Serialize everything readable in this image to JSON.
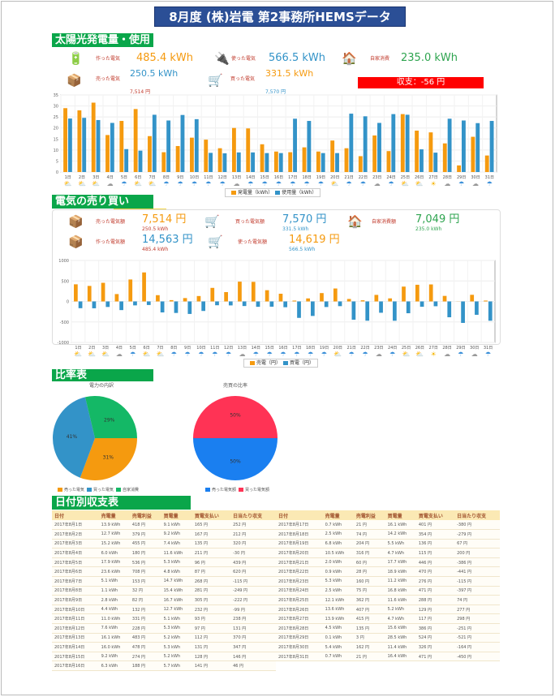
{
  "title": "8月度 (株)岩電 第2事務所HEMSデータ",
  "colors": {
    "orange": "#f59a0f",
    "blue": "#3393c8",
    "green": "#2ea44f",
    "red": "#ff0000",
    "section": "#0aa64a"
  },
  "solar": {
    "header": "太陽光発電量・使用量",
    "made": {
      "label": "作った電気",
      "value": "485.4 kWh",
      "icon": "battery-charge-icon"
    },
    "used": {
      "label": "使った電気",
      "value": "566.5 kWh",
      "icon": "battery-plug-icon"
    },
    "self": {
      "label": "自家消費",
      "value": "235.0 kWh",
      "icon": "house-bolt-icon"
    },
    "sold": {
      "label": "売った電気",
      "value": "250.5 kWh",
      "sub": "7,514 円",
      "icon": "yen-box-icon"
    },
    "bought": {
      "label": "買った電気",
      "value": "331.5 kWh",
      "sub": "7,570 円",
      "icon": "cart-bolt-icon"
    },
    "balance": "収支：-56 円"
  },
  "trade": {
    "header": "電気の売り買い",
    "sold": {
      "label": "売った電気額",
      "value": "7,514 円",
      "sub": "250.5 kWh"
    },
    "bought": {
      "label": "買った電気額",
      "value": "7,570 円",
      "sub": "331.5 kWh"
    },
    "self": {
      "label": "自家消費額",
      "value": "7,049 円",
      "sub": "235.0 kWh"
    },
    "made": {
      "label": "作った電気額",
      "value": "14,563 円",
      "sub": "485.4 kWh"
    },
    "used": {
      "label": "使った電気額",
      "value": "14,619 円",
      "sub": "566.5 kWh"
    }
  },
  "weather": [
    "cloud-sun",
    "sun-cloud",
    "cloud-sun",
    "cloud",
    "rain-sun",
    "sun-cloud",
    "cloud-sun",
    "rain",
    "rain",
    "rain",
    "rain",
    "rain",
    "cloud",
    "rain-sun",
    "rain",
    "rain",
    "rain",
    "rain",
    "rain",
    "cloud-sun",
    "rain",
    "rain",
    "cloud",
    "sun-rain",
    "cloud-sun",
    "cloud-sun",
    "sun",
    "cloud",
    "rain",
    "cloud",
    "rain"
  ],
  "chart_data": [
    {
      "type": "bar",
      "title": "",
      "xlabel": "",
      "ylabel": "",
      "categories": [
        "1日",
        "2日",
        "3日",
        "4日",
        "5日",
        "6日",
        "7日",
        "8日",
        "9日",
        "10日",
        "11日",
        "12日",
        "13日",
        "14日",
        "15日",
        "16日",
        "17日",
        "18日",
        "19日",
        "20日",
        "21日",
        "22日",
        "23日",
        "24日",
        "25日",
        "26日",
        "27日",
        "28日",
        "29日",
        "30日",
        "31日"
      ],
      "ylim": [
        0,
        35
      ],
      "yticks": [
        "0",
        "5",
        "10",
        "15",
        "20",
        "25",
        "30",
        "35"
      ],
      "legend": "bottom",
      "series": [
        {
          "name": "発電量（kWh）",
          "color": "#f59a0f",
          "values": [
            29,
            28,
            31.5,
            16.8,
            23.2,
            28.6,
            16.3,
            9,
            11.8,
            15.6,
            14.7,
            10.8,
            20,
            19.8,
            12.6,
            9.3,
            9,
            11.2,
            9.3,
            14.3,
            10.8,
            7.2,
            16.6,
            9.5,
            26.3,
            18.8,
            18,
            13,
            3,
            16,
            7.5
          ]
        },
        {
          "name": "使用量（kWh）",
          "color": "#3393c8",
          "values": [
            24.3,
            24.6,
            23.6,
            22.3,
            10.4,
            9.7,
            26,
            23.4,
            25.9,
            24,
            8.7,
            8.5,
            8.9,
            8.9,
            8.6,
            8.6,
            24.2,
            23.2,
            8.6,
            8.6,
            26.5,
            25.3,
            22.3,
            26.3,
            26,
            10.3,
            8.8,
            24.2,
            23.4,
            22.2,
            23.2
          ]
        }
      ]
    },
    {
      "type": "bar",
      "title": "",
      "xlabel": "",
      "ylabel": "",
      "categories": [
        "1日",
        "2日",
        "3日",
        "4日",
        "5日",
        "6日",
        "7日",
        "8日",
        "9日",
        "10日",
        "11日",
        "12日",
        "13日",
        "14日",
        "15日",
        "16日",
        "17日",
        "18日",
        "19日",
        "20日",
        "21日",
        "22日",
        "23日",
        "24日",
        "25日",
        "26日",
        "27日",
        "28日",
        "29日",
        "30日",
        "31日"
      ],
      "ylim": [
        -1000,
        1000
      ],
      "yticks": [
        "-1000",
        "-500",
        "0",
        "500",
        "1000"
      ],
      "legend": "bottom",
      "series": [
        {
          "name": "売電（円）",
          "color": "#f59a0f",
          "values": [
            418,
            379,
            455,
            180,
            536,
            708,
            153,
            32,
            82,
            132,
            331,
            228,
            483,
            478,
            274,
            188,
            21,
            74,
            204,
            316,
            60,
            28,
            160,
            75,
            362,
            407,
            415,
            135,
            3,
            162,
            21
          ]
        },
        {
          "name": "買電（円）",
          "color": "#3393c8",
          "values": [
            -165,
            -167,
            -135,
            -211,
            -96,
            -87,
            -268,
            -281,
            -305,
            -232,
            -93,
            -97,
            -112,
            -131,
            -128,
            -141,
            -401,
            -354,
            -136,
            -115,
            -446,
            -470,
            -276,
            -471,
            -288,
            -129,
            -117,
            -386,
            -524,
            -326,
            -471
          ]
        }
      ]
    },
    {
      "type": "pie",
      "title": "電力の内訳",
      "slices": [
        {
          "name": "売った電気",
          "value": 31,
          "label": "31%",
          "color": "#f59a0f"
        },
        {
          "name": "買った電気",
          "value": 41,
          "label": "41%",
          "color": "#3393c8"
        },
        {
          "name": "自家消費",
          "value": 29,
          "label": "29%",
          "color": "#14b866"
        }
      ]
    },
    {
      "type": "pie",
      "title": "売買の比率",
      "slices": [
        {
          "name": "売った電気額",
          "value": 50,
          "label": "50%",
          "color": "#1a7ff0"
        },
        {
          "name": "買った電気額",
          "value": 50,
          "label": "50%",
          "color": "#ff3355"
        }
      ]
    }
  ],
  "ratio": {
    "header": "比率表"
  },
  "table": {
    "header": "日付別収支表",
    "columns": [
      "日付",
      "売電量",
      "売電利益",
      "買電量",
      "買電支払い",
      "日当たり収支"
    ],
    "left": [
      [
        "2017年8月1日",
        "13.9 kWh",
        "418 円",
        "9.1 kWh",
        "165 円",
        "252 円"
      ],
      [
        "2017年8月2日",
        "12.7 kWh",
        "379 円",
        "9.2 kWh",
        "167 円",
        "212 円"
      ],
      [
        "2017年8月3日",
        "15.2 kWh",
        "455 円",
        "7.4 kWh",
        "135 円",
        "320 円"
      ],
      [
        "2017年8月4日",
        "6.0 kWh",
        "180 円",
        "11.6 kWh",
        "211 円",
        "-30 円"
      ],
      [
        "2017年8月5日",
        "17.9 kWh",
        "536 円",
        "5.3 kWh",
        "96 円",
        "439 円"
      ],
      [
        "2017年8月6日",
        "23.6 kWh",
        "708 円",
        "4.8 kWh",
        "87 円",
        "620 円"
      ],
      [
        "2017年8月7日",
        "5.1 kWh",
        "153 円",
        "14.7 kWh",
        "268 円",
        "-115 円"
      ],
      [
        "2017年8月8日",
        "1.1 kWh",
        "32 円",
        "15.4 kWh",
        "281 円",
        "-249 円"
      ],
      [
        "2017年8月9日",
        "2.8 kWh",
        "82 円",
        "16.7 kWh",
        "305 円",
        "-222 円"
      ],
      [
        "2017年8月10日",
        "4.4 kWh",
        "132 円",
        "12.7 kWh",
        "232 円",
        "-99 円"
      ],
      [
        "2017年8月11日",
        "11.0 kWh",
        "331 円",
        "5.1 kWh",
        "93 円",
        "238 円"
      ],
      [
        "2017年8月12日",
        "7.6 kWh",
        "228 円",
        "5.3 kWh",
        "97 円",
        "131 円"
      ],
      [
        "2017年8月13日",
        "16.1 kWh",
        "483 円",
        "5.2 kWh",
        "112 円",
        "370 円"
      ],
      [
        "2017年8月14日",
        "16.0 kWh",
        "478 円",
        "5.3 kWh",
        "131 円",
        "347 円"
      ],
      [
        "2017年8月15日",
        "9.2 kWh",
        "274 円",
        "5.2 kWh",
        "128 円",
        "146 円"
      ],
      [
        "2017年8月16日",
        "6.3 kWh",
        "188 円",
        "5.7 kWh",
        "141 円",
        "46 円"
      ]
    ],
    "right": [
      [
        "2017年8月17日",
        "0.7 kWh",
        "21 円",
        "16.1 kWh",
        "401 円",
        "-380 円"
      ],
      [
        "2017年8月18日",
        "2.5 kWh",
        "74 円",
        "14.2 kWh",
        "354 円",
        "-279 円"
      ],
      [
        "2017年8月19日",
        "6.8 kWh",
        "204 円",
        "5.5 kWh",
        "136 円",
        "67 円"
      ],
      [
        "2017年8月20日",
        "10.5 kWh",
        "316 円",
        "4.7 kWh",
        "115 円",
        "200 円"
      ],
      [
        "2017年8月21日",
        "2.0 kWh",
        "60 円",
        "17.7 kWh",
        "446 円",
        "-386 円"
      ],
      [
        "2017年8月22日",
        "0.9 kWh",
        "28 円",
        "18.9 kWh",
        "470 円",
        "-441 円"
      ],
      [
        "2017年8月23日",
        "5.3 kWh",
        "160 円",
        "11.2 kWh",
        "276 円",
        "-115 円"
      ],
      [
        "2017年8月24日",
        "2.5 kWh",
        "75 円",
        "16.8 kWh",
        "471 円",
        "-397 円"
      ],
      [
        "2017年8月25日",
        "12.1 kWh",
        "362 円",
        "11.6 kWh",
        "288 円",
        "74 円"
      ],
      [
        "2017年8月26日",
        "13.6 kWh",
        "407 円",
        "5.2 kWh",
        "129 円",
        "277 円"
      ],
      [
        "2017年8月27日",
        "13.9 kWh",
        "415 円",
        "4.7 kWh",
        "117 円",
        "298 円"
      ],
      [
        "2017年8月28日",
        "4.5 kWh",
        "135 円",
        "15.6 kWh",
        "386 円",
        "-251 円"
      ],
      [
        "2017年8月29日",
        "0.1 kWh",
        "3 円",
        "28.5 kWh",
        "524 円",
        "-521 円"
      ],
      [
        "2017年8月30日",
        "5.4 kWh",
        "162 円",
        "11.4 kWh",
        "326 円",
        "-164 円"
      ],
      [
        "2017年8月31日",
        "0.7 kWh",
        "21 円",
        "16.4 kWh",
        "471 円",
        "-450 円"
      ]
    ]
  }
}
